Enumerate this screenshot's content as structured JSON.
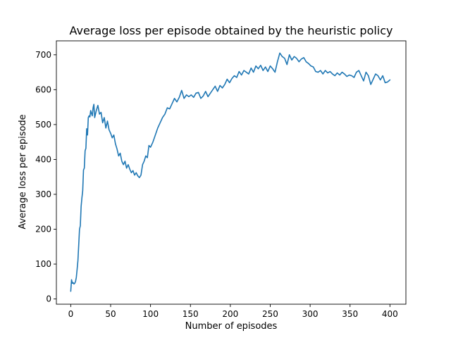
{
  "chart_data": {
    "type": "line",
    "title": "Average loss per episode obtained by the heuristic policy",
    "xlabel": "Number of episodes",
    "ylabel": "Average loss per episode",
    "xlim": [
      -18,
      420
    ],
    "ylim": [
      -15,
      740
    ],
    "xticks": [
      0,
      50,
      100,
      150,
      200,
      250,
      300,
      350,
      400
    ],
    "yticks": [
      0,
      100,
      200,
      300,
      400,
      500,
      600,
      700
    ],
    "xtick_labels": [
      "0",
      "50",
      "100",
      "150",
      "200",
      "250",
      "300",
      "350",
      "400"
    ],
    "ytick_labels": [
      "0",
      "100",
      "200",
      "300",
      "400",
      "500",
      "600",
      "700"
    ],
    "grid": false,
    "legend": "none",
    "series": [
      {
        "color": "#1f77b4",
        "x": [
          0,
          1,
          2,
          3,
          4,
          5,
          6,
          7,
          8,
          9,
          10,
          11,
          12,
          13,
          14,
          15,
          16,
          17,
          18,
          19,
          20,
          21,
          22,
          23,
          24,
          25,
          26,
          27,
          28,
          29,
          30,
          32,
          34,
          36,
          38,
          40,
          42,
          44,
          46,
          48,
          50,
          52,
          54,
          56,
          58,
          60,
          62,
          64,
          66,
          68,
          70,
          72,
          74,
          76,
          78,
          80,
          82,
          84,
          86,
          88,
          90,
          92,
          94,
          96,
          98,
          100,
          103,
          106,
          109,
          112,
          115,
          118,
          121,
          124,
          127,
          130,
          133,
          136,
          139,
          142,
          145,
          148,
          151,
          154,
          157,
          160,
          163,
          166,
          169,
          172,
          175,
          178,
          181,
          184,
          187,
          190,
          193,
          196,
          199,
          202,
          205,
          208,
          211,
          214,
          217,
          220,
          223,
          226,
          229,
          232,
          235,
          238,
          241,
          244,
          247,
          250,
          253,
          256,
          259,
          262,
          265,
          268,
          271,
          274,
          277,
          280,
          283,
          286,
          289,
          292,
          295,
          298,
          301,
          304,
          307,
          310,
          313,
          316,
          319,
          322,
          325,
          328,
          331,
          334,
          337,
          340,
          343,
          346,
          349,
          352,
          355,
          358,
          361,
          364,
          367,
          370,
          373,
          376,
          379,
          382,
          385,
          388,
          391,
          394,
          397,
          400
        ],
        "values": [
          22,
          55,
          45,
          47,
          43,
          45,
          50,
          62,
          85,
          110,
          155,
          200,
          210,
          265,
          290,
          310,
          370,
          375,
          425,
          432,
          488,
          470,
          520,
          525,
          522,
          540,
          532,
          525,
          548,
          558,
          520,
          540,
          555,
          530,
          535,
          505,
          520,
          490,
          510,
          485,
          475,
          462,
          470,
          445,
          430,
          410,
          418,
          395,
          385,
          395,
          375,
          385,
          372,
          362,
          368,
          355,
          362,
          353,
          348,
          355,
          385,
          395,
          410,
          405,
          440,
          435,
          450,
          470,
          490,
          505,
          520,
          530,
          548,
          545,
          560,
          575,
          565,
          578,
          598,
          575,
          585,
          580,
          585,
          578,
          590,
          592,
          575,
          582,
          595,
          580,
          590,
          600,
          610,
          595,
          612,
          605,
          615,
          630,
          620,
          632,
          640,
          635,
          652,
          642,
          655,
          650,
          645,
          662,
          650,
          668,
          660,
          670,
          655,
          665,
          652,
          668,
          660,
          650,
          680,
          705,
          695,
          690,
          672,
          700,
          685,
          695,
          690,
          680,
          688,
          692,
          680,
          675,
          668,
          665,
          652,
          650,
          655,
          645,
          655,
          648,
          652,
          645,
          640,
          648,
          642,
          650,
          645,
          638,
          642,
          640,
          635,
          650,
          655,
          640,
          625,
          650,
          640,
          615,
          630,
          645,
          640,
          628,
          640,
          620,
          622,
          628
        ]
      }
    ]
  }
}
